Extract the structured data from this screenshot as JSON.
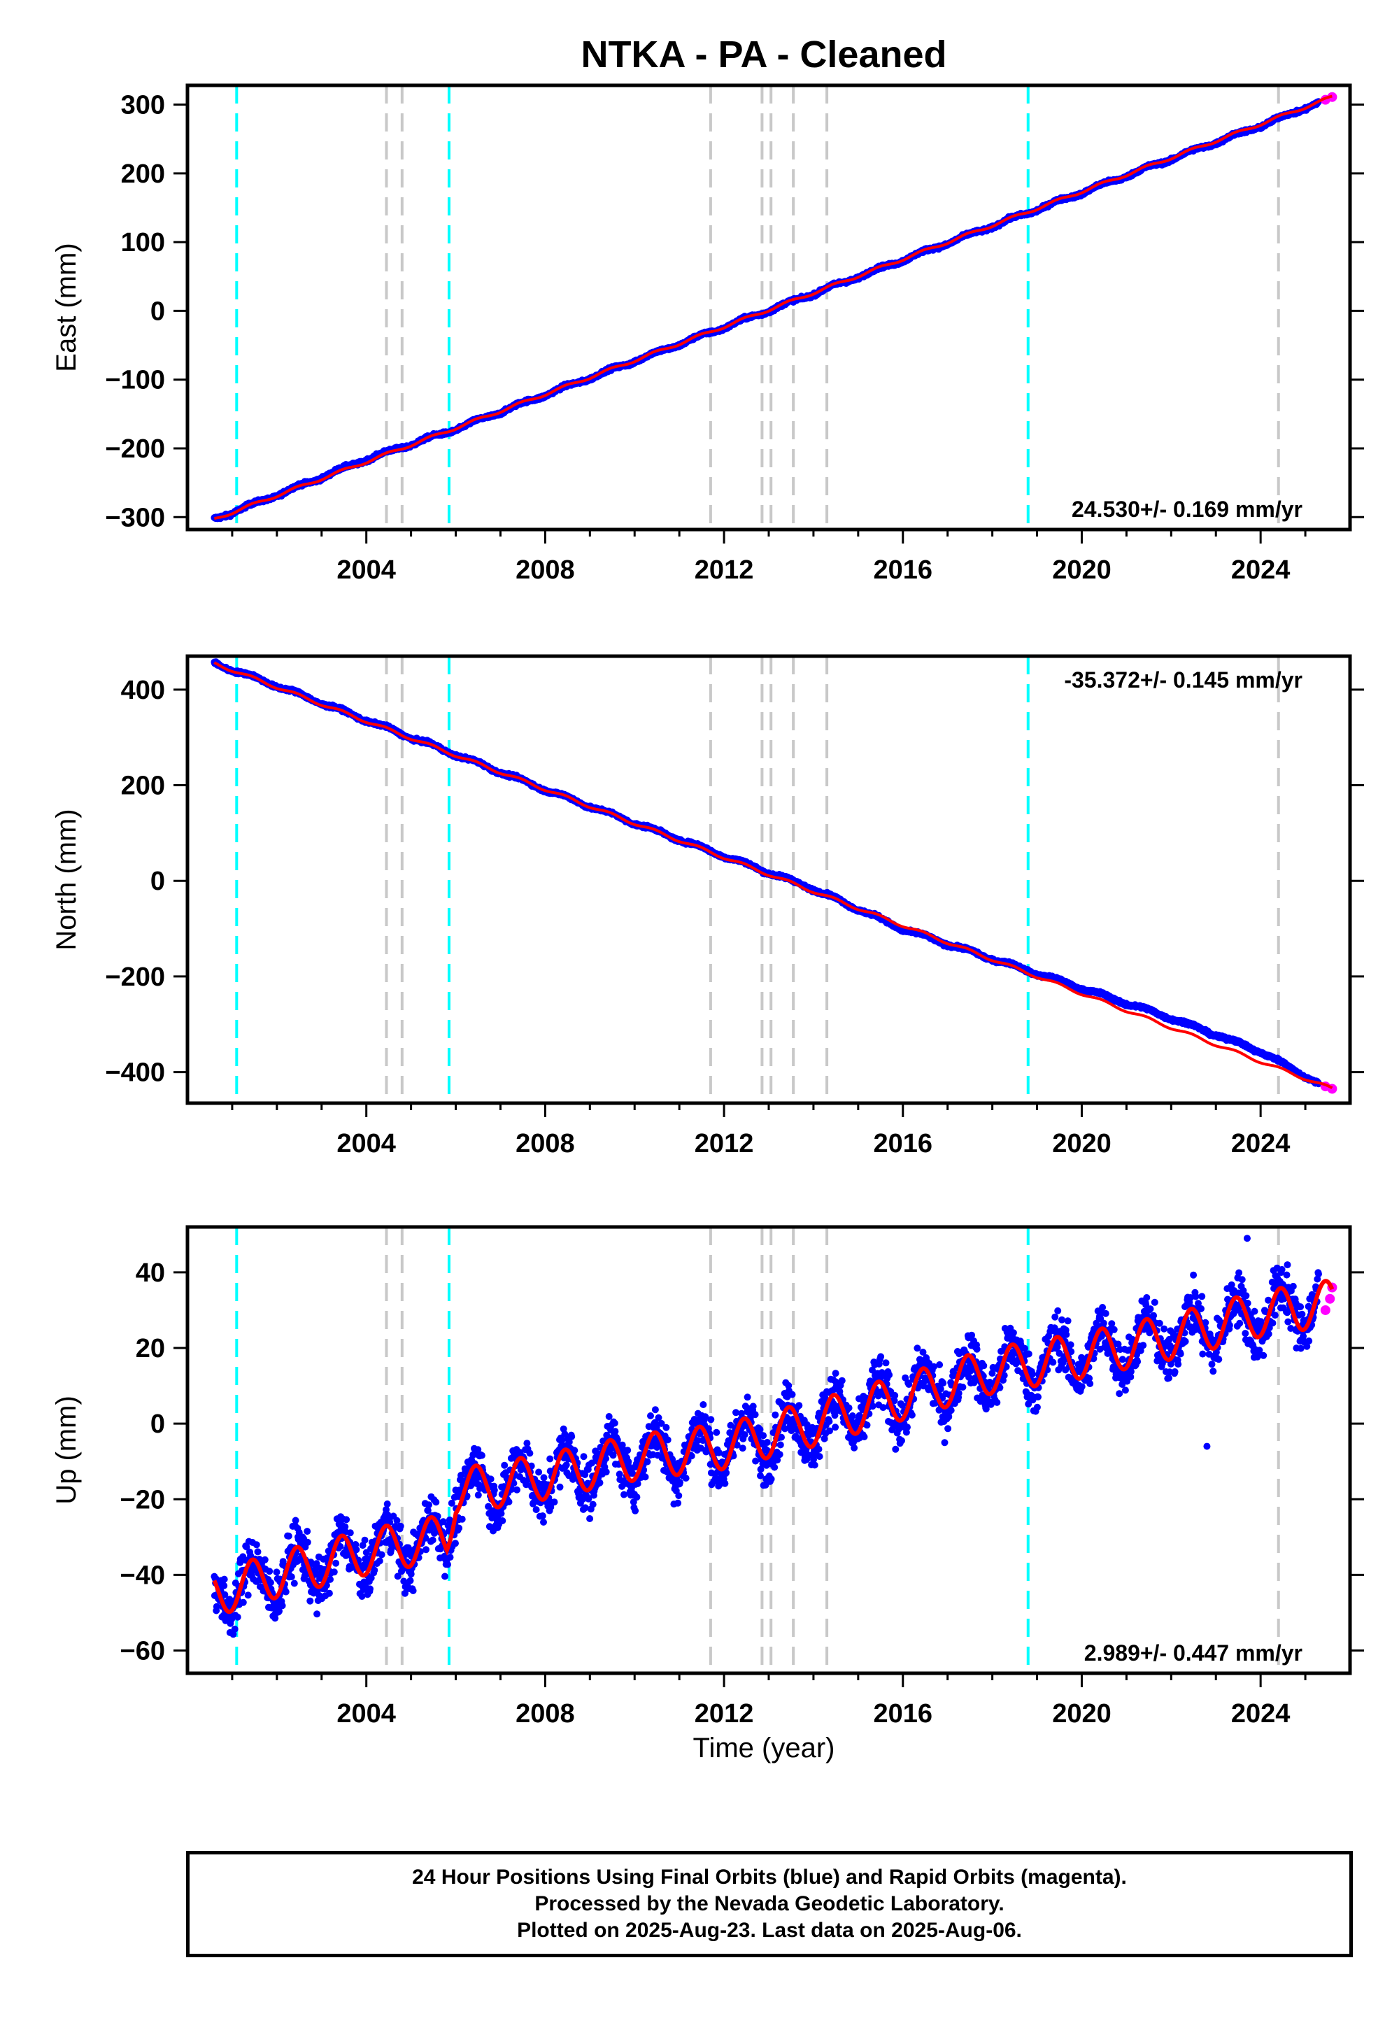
{
  "title": "NTKA  - PA - Cleaned",
  "xlabel": "Time (year)",
  "colors": {
    "final_orbits": "#0000ff",
    "rapid_orbits": "#ff00ff",
    "model": "#ff0000",
    "equipment_change": "#00ffff",
    "earthquake": "#c8c8c8"
  },
  "footer": {
    "line1": "24 Hour Positions Using Final Orbits (blue) and Rapid Orbits (magenta).",
    "line2": "Processed by the Nevada Geodetic Laboratory.",
    "line3": "Plotted on 2025-Aug-23. Last data on 2025-Aug-06."
  },
  "chart_data": [
    {
      "type": "scatter",
      "ylabel": "East (mm)",
      "xlim": [
        2000.0,
        2026.0
      ],
      "ylim": [
        -318,
        328
      ],
      "xticks": [
        2004,
        2008,
        2012,
        2016,
        2020,
        2024
      ],
      "yticks": [
        -300,
        -200,
        -100,
        0,
        100,
        200,
        300
      ],
      "rate_label": "24.530+/- 0.169 mm/yr",
      "rate_position": "bottom-right",
      "series": [
        {
          "role": "final_orbits",
          "x": [
            2000.6,
            2002.0,
            2004.0,
            2006.0,
            2008.0,
            2010.0,
            2012.0,
            2014.0,
            2016.0,
            2018.0,
            2020.0,
            2022.0,
            2024.0,
            2025.3
          ],
          "y": [
            -303,
            -268,
            -216,
            -172,
            -122,
            -73,
            -24,
            25,
            74,
            123,
            172,
            221,
            269,
            303
          ]
        },
        {
          "role": "rapid_orbits",
          "x": [
            2025.45,
            2025.6
          ],
          "y": [
            307,
            311
          ]
        },
        {
          "role": "model",
          "x": [
            2000.6,
            2025.6
          ],
          "y": [
            -303,
            311
          ]
        }
      ],
      "noise_amplitude": 3,
      "seasonal_amplitude": 2,
      "offsets": []
    },
    {
      "type": "scatter",
      "ylabel": "North (mm)",
      "xlim": [
        2000.0,
        2026.0
      ],
      "ylim": [
        -465,
        470
      ],
      "xticks": [
        2004,
        2008,
        2012,
        2016,
        2020,
        2024
      ],
      "yticks": [
        -400,
        -200,
        0,
        200,
        400
      ],
      "rate_label": "-35.372+/- 0.145 mm/yr",
      "rate_position": "top-right",
      "series": [
        {
          "role": "final_orbits",
          "x": [
            2000.6,
            2002.0,
            2004.0,
            2006.0,
            2008.0,
            2010.0,
            2012.0,
            2014.0,
            2016.0,
            2018.0,
            2020.0,
            2022.0,
            2024.0,
            2025.3
          ],
          "y": [
            455,
            408,
            336,
            264,
            191,
            121,
            52,
            -17,
            -101,
            -163,
            -225,
            -287,
            -357,
            -424
          ]
        },
        {
          "role": "rapid_orbits",
          "x": [
            2025.45,
            2025.6
          ],
          "y": [
            -430,
            -435
          ]
        },
        {
          "role": "model",
          "x": [
            2000.6,
            2025.6
          ],
          "y": [
            455,
            -435
          ]
        }
      ],
      "noise_amplitude": 4,
      "seasonal_amplitude": 3,
      "offsets": []
    },
    {
      "type": "scatter",
      "ylabel": "Up (mm)",
      "xlim": [
        2000.0,
        2026.0
      ],
      "ylim": [
        -66,
        52
      ],
      "xticks": [
        2004,
        2008,
        2012,
        2016,
        2020,
        2024
      ],
      "yticks": [
        -60,
        -40,
        -20,
        0,
        20,
        40
      ],
      "rate_label": "2.989+/- 0.447 mm/yr",
      "rate_position": "bottom-right",
      "series": [
        {
          "role": "final_orbits",
          "x": [
            2000.6,
            2002.0,
            2004.0,
            2005.8,
            2006.0,
            2008.0,
            2010.0,
            2012.0,
            2014.0,
            2016.0,
            2018.0,
            2020.0,
            2022.0,
            2024.0,
            2025.3
          ],
          "y": [
            -45,
            -40,
            -34,
            -30,
            -18,
            -14,
            -9,
            -6,
            0,
            7,
            14,
            18,
            23,
            29,
            32
          ]
        },
        {
          "role": "rapid_orbits",
          "x": [
            2025.45,
            2025.55,
            2025.6
          ],
          "y": [
            30,
            33,
            36
          ]
        },
        {
          "role": "model",
          "x": [
            2000.6,
            2002.0,
            2004.0,
            2005.8,
            2006.0,
            2008.0,
            2010.0,
            2012.0,
            2014.0,
            2016.0,
            2018.0,
            2020.0,
            2022.0,
            2024.0,
            2025.6
          ],
          "y": [
            -45,
            -40,
            -34,
            -30,
            -18,
            -14,
            -9,
            -6,
            0,
            7,
            14,
            18,
            23,
            29,
            32
          ]
        }
      ],
      "noise_amplitude": 9,
      "seasonal_amplitude": 6,
      "outliers": [
        {
          "x": 2022.8,
          "y": -6
        },
        {
          "x": 2023.7,
          "y": 49
        },
        {
          "x": 2024.6,
          "y": 42
        }
      ],
      "offsets": []
    }
  ],
  "event_lines": {
    "equipment_change_years": [
      2001.1,
      2005.85,
      2018.8
    ],
    "earthquake_years": [
      2004.45,
      2004.8,
      2011.7,
      2012.85,
      2013.05,
      2013.55,
      2014.3,
      2024.4
    ]
  }
}
